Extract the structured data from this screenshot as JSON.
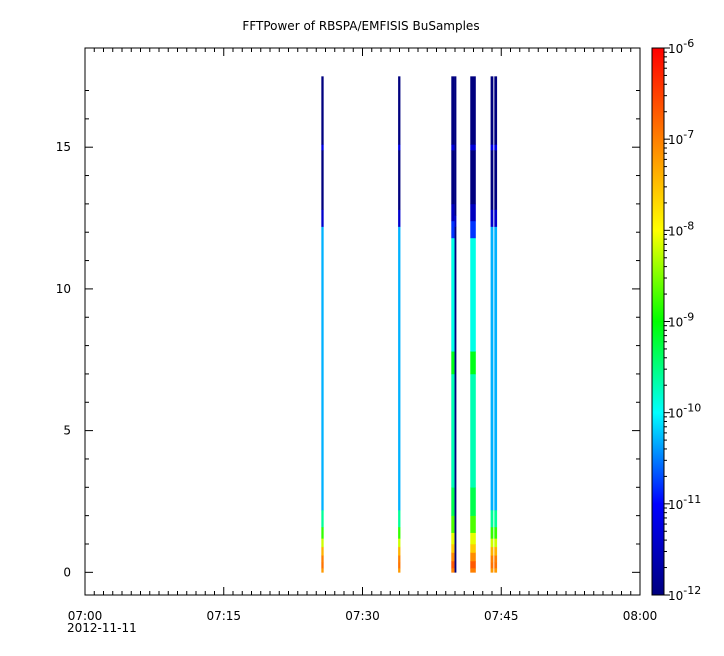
{
  "chart_data": {
    "type": "heatmap",
    "title": "FFTPower of RBSPA/EMFISIS  BuSamples",
    "xlabel": "",
    "ylabel": "",
    "x_axis": {
      "type": "time",
      "range": [
        "07:00",
        "08:00"
      ],
      "tick_labels": [
        "07:00",
        "07:15",
        "07:30",
        "07:45",
        "08:00"
      ],
      "tick_minutes": [
        0,
        15,
        30,
        45,
        60
      ],
      "minor_tick_step_minutes": 1,
      "date_label": "2012-11-11"
    },
    "y_axis": {
      "range": [
        -0.8,
        18.5
      ],
      "tick_labels": [
        "0",
        "5",
        "10",
        "15"
      ],
      "tick_values": [
        0,
        5,
        10,
        15
      ]
    },
    "colorbar": {
      "scale": "log",
      "range": [
        1e-12,
        1e-06
      ],
      "tick_bases": [
        "10",
        "10",
        "10",
        "10",
        "10",
        "10",
        "10"
      ],
      "tick_exponents": [
        "-12",
        "-11",
        "-10",
        "-9",
        "-8",
        "-7",
        "-6"
      ],
      "colormap": [
        "#00007f",
        "#0000ff",
        "#00ffff",
        "#00ff00",
        "#ffff00",
        "#ff7f00",
        "#ff0000"
      ]
    },
    "y_max_data": 17.5,
    "bursts": [
      {
        "t_start": 25.55,
        "t_end": 25.8,
        "profile": "narrow"
      },
      {
        "t_start": 33.85,
        "t_end": 34.1,
        "profile": "narrow"
      },
      {
        "t_start": 39.6,
        "t_end": 39.95,
        "profile": "active"
      },
      {
        "t_start": 39.95,
        "t_end": 40.15,
        "profile": "dark"
      },
      {
        "t_start": 41.65,
        "t_end": 42.25,
        "profile": "active"
      },
      {
        "t_start": 43.85,
        "t_end": 44.15,
        "profile": "narrow"
      },
      {
        "t_start": 44.25,
        "t_end": 44.55,
        "profile": "narrow"
      }
    ],
    "profiles": {
      "narrow": [
        {
          "y0": 0.0,
          "y1": 0.15,
          "log_power": -7.2
        },
        {
          "y0": 0.15,
          "y1": 0.35,
          "log_power": -6.9
        },
        {
          "y0": 0.35,
          "y1": 0.6,
          "log_power": -7.0
        },
        {
          "y0": 0.6,
          "y1": 0.9,
          "log_power": -7.4
        },
        {
          "y0": 0.9,
          "y1": 1.2,
          "log_power": -8.2
        },
        {
          "y0": 1.2,
          "y1": 1.6,
          "log_power": -8.8
        },
        {
          "y0": 1.6,
          "y1": 2.2,
          "log_power": -9.6
        },
        {
          "y0": 2.2,
          "y1": 12.2,
          "log_power": -10.3
        },
        {
          "y0": 12.2,
          "y1": 12.8,
          "log_power": -11.4
        },
        {
          "y0": 12.8,
          "y1": 14.9,
          "log_power": -12.0
        },
        {
          "y0": 14.9,
          "y1": 15.1,
          "log_power": -11.2
        },
        {
          "y0": 15.1,
          "y1": 17.5,
          "log_power": -12.0
        }
      ],
      "active": [
        {
          "y0": 0.0,
          "y1": 0.15,
          "log_power": -7.0
        },
        {
          "y0": 0.15,
          "y1": 0.4,
          "log_power": -6.7
        },
        {
          "y0": 0.4,
          "y1": 0.7,
          "log_power": -7.1
        },
        {
          "y0": 0.7,
          "y1": 1.0,
          "log_power": -7.6
        },
        {
          "y0": 1.0,
          "y1": 1.4,
          "log_power": -8.1
        },
        {
          "y0": 1.4,
          "y1": 2.0,
          "log_power": -8.7
        },
        {
          "y0": 2.0,
          "y1": 3.0,
          "log_power": -9.3
        },
        {
          "y0": 3.0,
          "y1": 7.0,
          "log_power": -9.7
        },
        {
          "y0": 7.0,
          "y1": 7.8,
          "log_power": -9.1
        },
        {
          "y0": 7.8,
          "y1": 11.8,
          "log_power": -9.9
        },
        {
          "y0": 11.8,
          "y1": 12.4,
          "log_power": -10.8
        },
        {
          "y0": 12.4,
          "y1": 13.0,
          "log_power": -11.5
        },
        {
          "y0": 13.0,
          "y1": 14.9,
          "log_power": -12.0
        },
        {
          "y0": 14.9,
          "y1": 15.1,
          "log_power": -11.3
        },
        {
          "y0": 15.1,
          "y1": 17.5,
          "log_power": -12.0
        }
      ],
      "dark": [
        {
          "y0": 0.0,
          "y1": 12.2,
          "log_power": -12.0
        },
        {
          "y0": 12.2,
          "y1": 12.6,
          "log_power": -11.5
        },
        {
          "y0": 12.6,
          "y1": 17.5,
          "log_power": -12.0
        }
      ]
    }
  }
}
